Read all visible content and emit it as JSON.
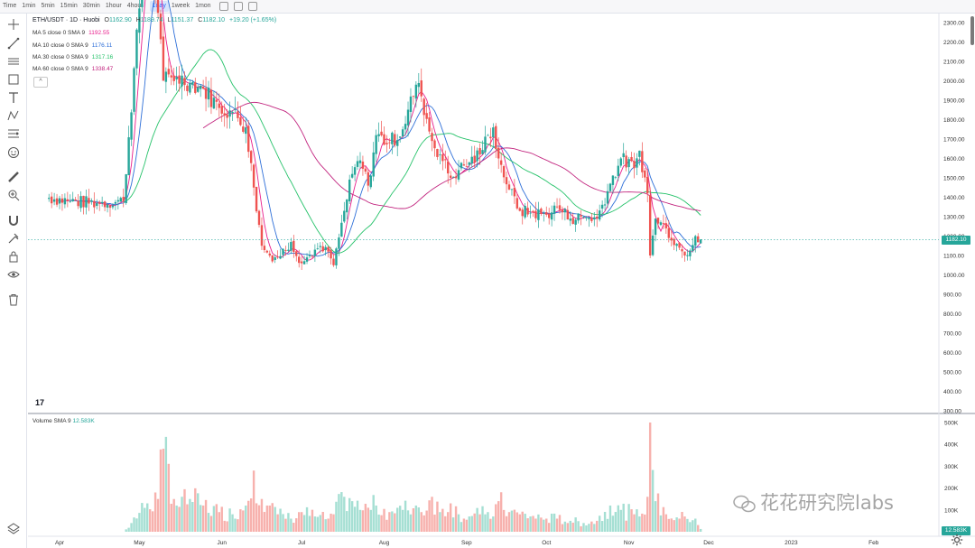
{
  "topbar": {
    "timeframes": [
      "Time",
      "1min",
      "5min",
      "15min",
      "30min",
      "1hour",
      "4hour",
      "1day",
      "1week",
      "1mon"
    ],
    "active": "1day"
  },
  "legend": {
    "title": "ETH/USDT · 1D · Huobi",
    "ohlc": {
      "o_label": "O",
      "open": "1162.90",
      "h_label": "H",
      "high": "1189.74",
      "l_label": "L",
      "low": "1151.37",
      "c_label": "C",
      "close": "1182.10",
      "change": "+19.20 (+1.65%)"
    },
    "ma": [
      {
        "label": "MA 5 close 0 SMA 9",
        "value": "1192.55",
        "color": "#e91e8c"
      },
      {
        "label": "MA 10 close 0 SMA 9",
        "value": "1176.11",
        "color": "#2e6fd8"
      },
      {
        "label": "MA 30 close 0 SMA 9",
        "value": "1317.16",
        "color": "#26c26a"
      },
      {
        "label": "MA 60 close 0 SMA 9",
        "value": "1338.47",
        "color": "#c2257f"
      }
    ],
    "collapse": "^"
  },
  "volume_legend": {
    "label": "Volume SMA 9",
    "value": "12.583K"
  },
  "price_axis": {
    "ticks": [
      "2300.00",
      "2200.00",
      "2100.00",
      "2000.00",
      "1900.00",
      "1800.00",
      "1700.00",
      "1600.00",
      "1500.00",
      "1400.00",
      "1300.00",
      "1200.00",
      "1100.00",
      "1000.00",
      "900.00",
      "800.00",
      "700.00",
      "600.00",
      "500.00",
      "400.00",
      "300.00"
    ],
    "last_price": "1182.10"
  },
  "volume_axis": {
    "ticks": [
      "500K",
      "400K",
      "300K",
      "200K",
      "100K"
    ],
    "last_volume": "12.583K"
  },
  "time_axis": {
    "labels": [
      "Apr",
      "May",
      "Jun",
      "Jul",
      "Aug",
      "Sep",
      "Oct",
      "Nov",
      "Dec",
      "2023",
      "Feb"
    ]
  },
  "watermark": "花花研究院labs",
  "logo": "17",
  "colors": {
    "up": "#26a69a",
    "down": "#ef5350",
    "vol_up": "#a5dfd3",
    "vol_down": "#f7b1ad"
  },
  "chart_data": {
    "type": "candlestick",
    "price_range": [
      300,
      2300
    ],
    "anchors": [
      [
        "2022-03-27",
        1400,
        0
      ],
      [
        "2022-04-05",
        1380,
        0
      ],
      [
        "2022-04-15",
        1370,
        0
      ],
      [
        "2022-04-25",
        1380,
        0
      ],
      [
        "2022-05-04",
        2880,
        130
      ],
      [
        "2022-05-08",
        2350,
        150
      ],
      [
        "2022-05-10",
        2000,
        380
      ],
      [
        "2022-05-15",
        2020,
        120
      ],
      [
        "2022-05-20",
        1990,
        150
      ],
      [
        "2022-05-25",
        1960,
        120
      ],
      [
        "2022-05-31",
        1860,
        90
      ],
      [
        "2022-06-05",
        1840,
        80
      ],
      [
        "2022-06-10",
        1760,
        120
      ],
      [
        "2022-06-13",
        1450,
        280
      ],
      [
        "2022-06-16",
        1150,
        150
      ],
      [
        "2022-06-19",
        1100,
        120
      ],
      [
        "2022-06-22",
        1090,
        80
      ],
      [
        "2022-06-27",
        1170,
        60
      ],
      [
        "2022-07-01",
        1060,
        90
      ],
      [
        "2022-07-06",
        1130,
        70
      ],
      [
        "2022-07-11",
        1120,
        60
      ],
      [
        "2022-07-13",
        1050,
        80
      ],
      [
        "2022-07-17",
        1330,
        160
      ],
      [
        "2022-07-20",
        1520,
        140
      ],
      [
        "2022-07-23",
        1590,
        100
      ],
      [
        "2022-07-26",
        1460,
        110
      ],
      [
        "2022-07-29",
        1720,
        120
      ],
      [
        "2022-08-03",
        1680,
        90
      ],
      [
        "2022-08-08",
        1750,
        100
      ],
      [
        "2022-08-13",
        1980,
        120
      ],
      [
        "2022-08-15",
        1920,
        90
      ],
      [
        "2022-08-19",
        1690,
        160
      ],
      [
        "2022-08-22",
        1620,
        90
      ],
      [
        "2022-08-26",
        1500,
        130
      ],
      [
        "2022-08-29",
        1540,
        80
      ],
      [
        "2022-09-02",
        1580,
        70
      ],
      [
        "2022-09-06",
        1620,
        80
      ],
      [
        "2022-09-09",
        1720,
        90
      ],
      [
        "2022-09-11",
        1760,
        70
      ],
      [
        "2022-09-13",
        1600,
        140
      ],
      [
        "2022-09-17",
        1440,
        90
      ],
      [
        "2022-09-21",
        1330,
        80
      ],
      [
        "2022-09-25",
        1320,
        70
      ],
      [
        "2022-10-01",
        1310,
        60
      ],
      [
        "2022-10-05",
        1350,
        60
      ],
      [
        "2022-10-10",
        1290,
        50
      ],
      [
        "2022-10-15",
        1300,
        40
      ],
      [
        "2022-10-20",
        1290,
        50
      ],
      [
        "2022-10-25",
        1470,
        120
      ],
      [
        "2022-10-29",
        1600,
        100
      ],
      [
        "2022-11-03",
        1550,
        80
      ],
      [
        "2022-11-05",
        1640,
        70
      ],
      [
        "2022-11-08",
        1420,
        160
      ],
      [
        "2022-11-09",
        1100,
        500
      ],
      [
        "2022-11-11",
        1290,
        140
      ],
      [
        "2022-11-15",
        1240,
        80
      ],
      [
        "2022-11-20",
        1140,
        60
      ],
      [
        "2022-11-22",
        1100,
        70
      ],
      [
        "2022-11-26",
        1200,
        60
      ],
      [
        "2022-11-28",
        1182,
        12.6
      ]
    ],
    "ma_series": [
      {
        "name": "MA 5",
        "last": 1192.55
      },
      {
        "name": "MA 10",
        "last": 1176.11
      },
      {
        "name": "MA 30",
        "last": 1317.16
      },
      {
        "name": "MA 60",
        "last": 1338.47
      }
    ]
  }
}
